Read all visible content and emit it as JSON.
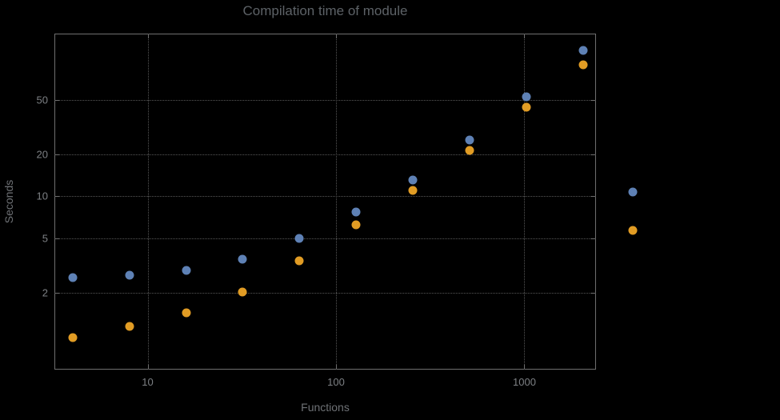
{
  "chart_data": {
    "type": "scatter",
    "title": "Compilation time of module",
    "xlabel": "Functions",
    "ylabel": "Seconds",
    "x_scale": "log",
    "y_scale": "log",
    "xlim": [
      3.2,
      2400
    ],
    "ylim": [
      0.56,
      150
    ],
    "x_ticks": [
      10,
      100,
      1000
    ],
    "y_ticks": [
      2,
      5,
      10,
      20,
      50
    ],
    "grid": "dotted",
    "legend_position": "right-outside",
    "x": [
      4,
      8,
      16,
      32,
      64,
      128,
      256,
      512,
      1024,
      2048
    ],
    "series": [
      {
        "name": "blue",
        "color": "#5E81B5",
        "values": [
          2.6,
          2.7,
          2.9,
          3.5,
          5.0,
          7.7,
          13.2,
          25.5,
          52.5,
          114
        ]
      },
      {
        "name": "orange",
        "color": "#E19C24",
        "values": [
          0.95,
          1.15,
          1.45,
          2.05,
          3.4,
          6.2,
          11.0,
          21.5,
          44,
          89
        ]
      }
    ]
  }
}
